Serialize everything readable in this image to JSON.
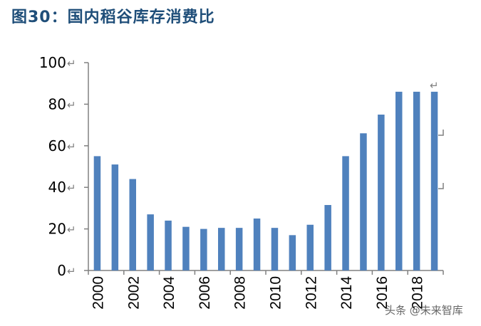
{
  "title": "图30：国内稻谷库存消费比",
  "watermark": "头条 @未来智库",
  "colors": {
    "bar": "#4f81bd",
    "axis": "#808080",
    "title": "#1f4e79"
  },
  "chart_data": {
    "type": "bar",
    "title": "图30：国内稻谷库存消费比",
    "xlabel": "",
    "ylabel": "",
    "categories": [
      "2000",
      "2001",
      "2002",
      "2003",
      "2004",
      "2005",
      "2006",
      "2007",
      "2008",
      "2009",
      "2010",
      "2011",
      "2012",
      "2013",
      "2014",
      "2015",
      "2016",
      "2017",
      "2018",
      "2019"
    ],
    "values": [
      55,
      51,
      44,
      27,
      24,
      21,
      20,
      20.5,
      20.5,
      25,
      20.5,
      17,
      22,
      31.5,
      55,
      66,
      75,
      86,
      86,
      86
    ],
    "x_tick_labels": [
      "2000",
      "2002",
      "2004",
      "2006",
      "2008",
      "2010",
      "2012",
      "2014",
      "2016",
      "2018"
    ],
    "y_tick_labels": [
      "0",
      "20",
      "40",
      "60",
      "80",
      "100"
    ],
    "ylim": [
      0,
      100
    ],
    "grid": false,
    "legend": null
  }
}
